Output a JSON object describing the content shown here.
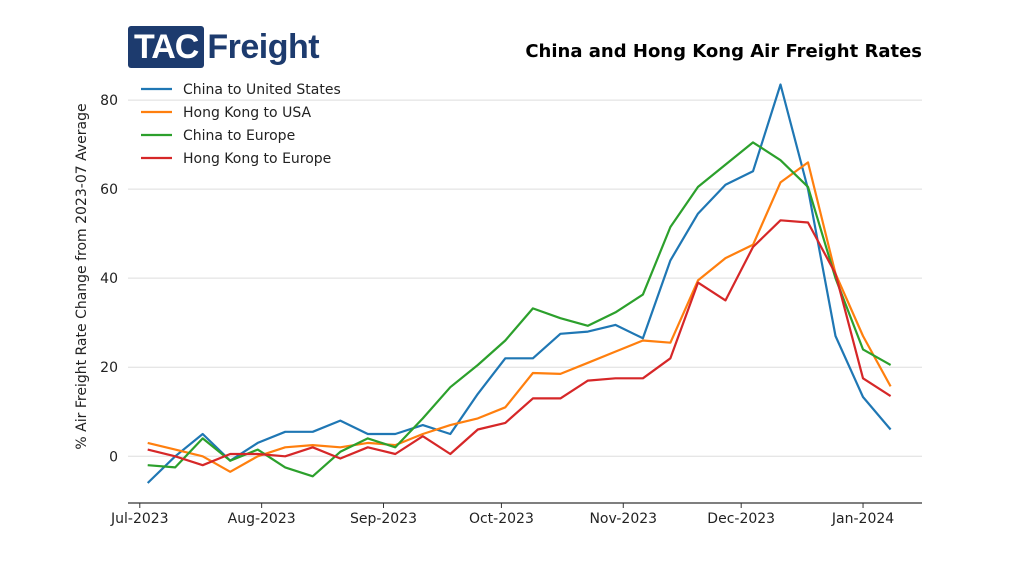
{
  "logo": {
    "part1": "TAC",
    "part2": "Freight"
  },
  "chart_data": {
    "type": "line",
    "title": "China and Hong Kong Air Freight Rates",
    "xlabel": "",
    "ylabel": "% Air Freight Rate Change from 2023-07 Average",
    "ylim": [
      -10.5,
      89
    ],
    "yticks": [
      0,
      20,
      40,
      60,
      80
    ],
    "xlim": [
      "2023-06-28",
      "2024-01-16"
    ],
    "xticks": [
      {
        "date": "2023-07-01",
        "label": "Jul-2023"
      },
      {
        "date": "2023-08-01",
        "label": "Aug-2023"
      },
      {
        "date": "2023-09-01",
        "label": "Sep-2023"
      },
      {
        "date": "2023-10-01",
        "label": "Oct-2023"
      },
      {
        "date": "2023-11-01",
        "label": "Nov-2023"
      },
      {
        "date": "2023-12-01",
        "label": "Dec-2023"
      },
      {
        "date": "2024-01-01",
        "label": "Jan-2024"
      }
    ],
    "grid": "horizontal",
    "legend": "top-left",
    "x": [
      "2023-07-03",
      "2023-07-10",
      "2023-07-17",
      "2023-07-24",
      "2023-07-31",
      "2023-08-07",
      "2023-08-14",
      "2023-08-21",
      "2023-08-28",
      "2023-09-04",
      "2023-09-11",
      "2023-09-18",
      "2023-09-25",
      "2023-10-02",
      "2023-10-09",
      "2023-10-16",
      "2023-10-23",
      "2023-10-30",
      "2023-11-06",
      "2023-11-13",
      "2023-11-20",
      "2023-11-27",
      "2023-12-04",
      "2023-12-11",
      "2023-12-18",
      "2023-12-25",
      "2024-01-01",
      "2024-01-08"
    ],
    "series": [
      {
        "name": "China to United States",
        "color": "#1f77b4",
        "values": [
          -6,
          0,
          5,
          -1,
          3,
          5.5,
          5.5,
          8,
          5,
          5,
          7,
          5,
          14,
          22,
          22,
          27.5,
          28,
          29.5,
          26.5,
          44,
          54.5,
          61,
          64,
          83.5,
          60,
          27,
          13.3,
          6
        ]
      },
      {
        "name": "Hong Kong to USA",
        "color": "#ff7f0e",
        "values": [
          3,
          1.5,
          0,
          -3.5,
          0,
          2,
          2.5,
          2,
          3,
          2.5,
          5,
          7,
          8.5,
          11,
          18.7,
          18.5,
          21,
          23.5,
          26,
          25.5,
          39.5,
          44.5,
          47.5,
          61.5,
          66,
          41,
          27,
          15.7
        ]
      },
      {
        "name": "China to Europe",
        "color": "#2ca02c",
        "values": [
          -2,
          -2.5,
          4,
          -1,
          1.5,
          -2.5,
          -4.5,
          1,
          4,
          2,
          8.5,
          15.5,
          20.5,
          26,
          33.2,
          31,
          29.3,
          32.3,
          36.3,
          51.5,
          60.5,
          65.5,
          70.5,
          66.5,
          60.5,
          40,
          24,
          20.5
        ]
      },
      {
        "name": "Hong Kong to Europe",
        "color": "#d62728",
        "values": [
          1.5,
          0,
          -2,
          0.5,
          0.5,
          0,
          2,
          -0.5,
          2,
          0.5,
          4.5,
          0.5,
          6,
          7.5,
          13,
          13,
          17,
          17.5,
          17.5,
          22,
          39,
          35,
          47,
          53,
          52.5,
          41,
          17.5,
          13.5
        ]
      }
    ]
  }
}
